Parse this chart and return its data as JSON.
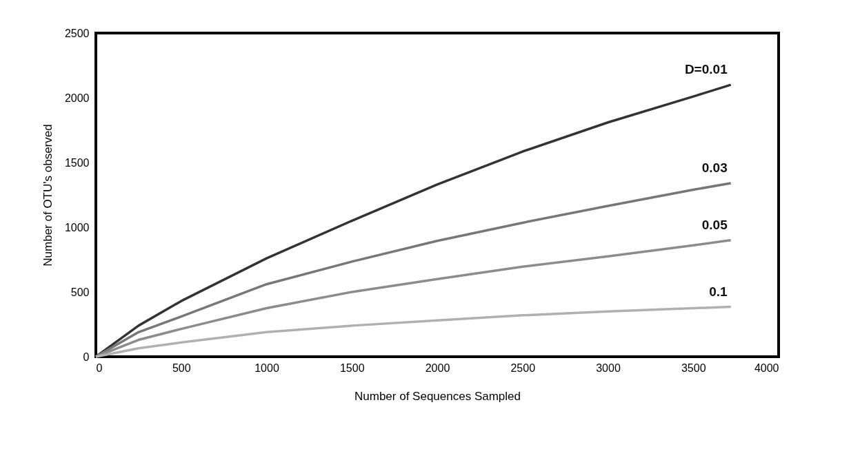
{
  "chart_data": {
    "type": "line",
    "xlabel": "Number of Sequences Sampled",
    "ylabel": "Number of OTU's observed",
    "xlim": [
      0,
      4000
    ],
    "ylim": [
      0,
      2500
    ],
    "xticks": [
      0,
      500,
      1000,
      1500,
      2000,
      2500,
      3000,
      3500,
      4000
    ],
    "yticks": [
      0,
      500,
      1000,
      1500,
      2000,
      2500
    ],
    "grid": false,
    "legend": false,
    "marker": "none",
    "line_style": "solid",
    "x": [
      0,
      250,
      500,
      1000,
      1500,
      2000,
      2500,
      3000,
      3500,
      3720
    ],
    "series": [
      {
        "name": "D=0.01",
        "color": "#333333",
        "values": [
          0,
          240,
          430,
          760,
          1050,
          1330,
          1585,
          1810,
          2010,
          2100
        ]
      },
      {
        "name": "0.03",
        "color": "#777777",
        "values": [
          0,
          190,
          310,
          560,
          735,
          895,
          1035,
          1165,
          1290,
          1340
        ]
      },
      {
        "name": "0.05",
        "color": "#8c8c8c",
        "values": [
          0,
          130,
          215,
          375,
          500,
          600,
          695,
          775,
          860,
          900
        ]
      },
      {
        "name": "0.1",
        "color": "#b0b0b0",
        "values": [
          0,
          65,
          110,
          190,
          240,
          280,
          320,
          350,
          375,
          385
        ]
      }
    ]
  }
}
